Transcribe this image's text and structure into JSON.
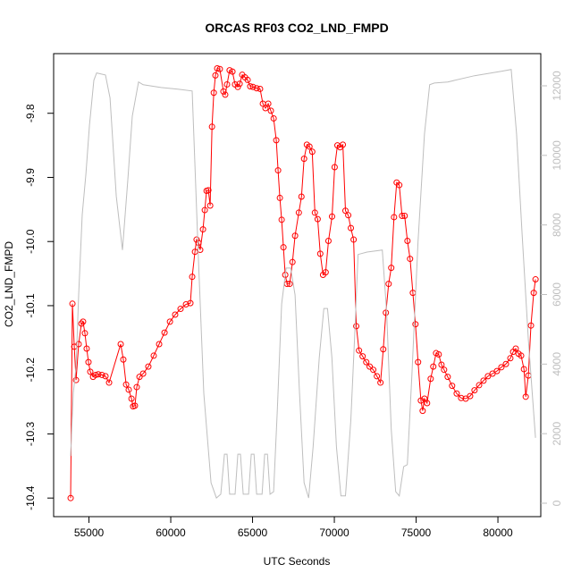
{
  "chart_data": {
    "type": "line",
    "title": "ORCAS RF03 CO2_LND_FMPD",
    "xlabel": "UTC Seconds",
    "ylabel": "CO2_LND_FMPD",
    "xlim": [
      52840,
      82620
    ],
    "xticks": [
      55000,
      60000,
      65000,
      70000,
      75000,
      80000
    ],
    "ylim": [
      -10.429,
      -9.707
    ],
    "yticks": [
      -9.8,
      -9.9,
      {
        "value": -10,
        "label": "-10.0"
      },
      -10.1,
      -10.2,
      -10.3,
      -10.4
    ],
    "y2lim": [
      -386,
      12925
    ],
    "y2ticks": [
      0,
      2000,
      4000,
      6000,
      8000,
      10000,
      12000
    ],
    "series": [
      {
        "color": "#ff0000",
        "markers": true,
        "x": [
          53880,
          53990,
          54100,
          54210,
          54370,
          54540,
          54640,
          54750,
          54860,
          54970,
          55080,
          55250,
          55410,
          55570,
          55790,
          56010,
          56230,
          56940,
          57100,
          57270,
          57430,
          57600,
          57700,
          57810,
          57920,
          58090,
          58310,
          58630,
          58960,
          59290,
          59620,
          59950,
          60270,
          60600,
          60930,
          61200,
          61310,
          61480,
          61580,
          61690,
          61800,
          61970,
          62080,
          62190,
          62300,
          62410,
          62520,
          62630,
          62730,
          62840,
          63000,
          63220,
          63330,
          63440,
          63600,
          63770,
          63930,
          64100,
          64210,
          64370,
          64540,
          64700,
          64860,
          65030,
          65250,
          65460,
          65630,
          65790,
          65960,
          66120,
          66290,
          66450,
          66560,
          66670,
          66780,
          66890,
          67000,
          67110,
          67270,
          67440,
          67600,
          67830,
          67990,
          68150,
          68320,
          68480,
          68650,
          68810,
          68980,
          69140,
          69310,
          69470,
          69640,
          69860,
          70020,
          70190,
          70350,
          70520,
          70680,
          70850,
          71010,
          71180,
          71340,
          71510,
          71730,
          71950,
          72160,
          72380,
          72600,
          72820,
          72990,
          73150,
          73320,
          73480,
          73650,
          73810,
          73970,
          74140,
          74300,
          74470,
          74630,
          74800,
          74960,
          75120,
          75290,
          75400,
          75510,
          75670,
          75890,
          76050,
          76220,
          76380,
          76550,
          76710,
          76930,
          77200,
          77480,
          77750,
          78030,
          78300,
          78570,
          78850,
          79120,
          79390,
          79670,
          79940,
          80210,
          80490,
          80760,
          80930,
          81090,
          81260,
          81420,
          81590,
          81700,
          81860,
          82020,
          82190,
          82300
        ],
        "values": [
          -10.4,
          -10.097,
          -10.164,
          -10.216,
          -10.16,
          -10.128,
          -10.125,
          -10.143,
          -10.167,
          -10.188,
          -10.203,
          -10.211,
          -10.208,
          -10.207,
          -10.208,
          -10.21,
          -10.22,
          -10.16,
          -10.184,
          -10.223,
          -10.231,
          -10.245,
          -10.257,
          -10.256,
          -10.227,
          -10.211,
          -10.206,
          -10.195,
          -10.178,
          -10.16,
          -10.142,
          -10.125,
          -10.114,
          -10.105,
          -10.098,
          -10.096,
          -10.055,
          -10.016,
          -9.997,
          -10.002,
          -10.013,
          -9.981,
          -9.951,
          -9.921,
          -9.92,
          -9.944,
          -9.821,
          -9.768,
          -9.741,
          -9.73,
          -9.731,
          -9.766,
          -9.771,
          -9.755,
          -9.733,
          -9.735,
          -9.755,
          -9.759,
          -9.754,
          -9.74,
          -9.744,
          -9.748,
          -9.758,
          -9.759,
          -9.761,
          -9.762,
          -9.785,
          -9.792,
          -9.785,
          -9.796,
          -9.808,
          -9.842,
          -9.889,
          -9.932,
          -9.966,
          -10.009,
          -10.052,
          -10.066,
          -10.066,
          -10.032,
          -9.991,
          -9.955,
          -9.93,
          -9.871,
          -9.849,
          -9.852,
          -9.86,
          -9.955,
          -9.965,
          -10.019,
          -10.052,
          -10.048,
          -9.999,
          -9.961,
          -9.884,
          -9.85,
          -9.853,
          -9.849,
          -9.952,
          -9.959,
          -9.979,
          -9.997,
          -10.132,
          -10.17,
          -10.179,
          -10.188,
          -10.195,
          -10.2,
          -10.21,
          -10.22,
          -10.168,
          -10.111,
          -10.066,
          -10.041,
          -9.962,
          -9.908,
          -9.912,
          -9.96,
          -9.96,
          -9.999,
          -10.027,
          -10.08,
          -10.129,
          -10.188,
          -10.248,
          -10.264,
          -10.245,
          -10.252,
          -10.214,
          -10.195,
          -10.174,
          -10.176,
          -10.192,
          -10.2,
          -10.211,
          -10.225,
          -10.237,
          -10.244,
          -10.245,
          -10.241,
          -10.232,
          -10.224,
          -10.217,
          -10.21,
          -10.206,
          -10.202,
          -10.196,
          -10.191,
          -10.182,
          -10.172,
          -10.167,
          -10.175,
          -10.178,
          -10.199,
          -10.242,
          -10.209,
          -10.131,
          -10.08,
          -10.059
        ]
      },
      {
        "color": "#bebebe",
        "axis": "y2",
        "x": [
          53880,
          54040,
          54210,
          54370,
          54590,
          54810,
          55030,
          55300,
          55470,
          56010,
          56290,
          56670,
          57050,
          57380,
          57650,
          58030,
          58310,
          59400,
          60490,
          61310,
          61690,
          62020,
          62460,
          62790,
          63060,
          63280,
          63440,
          63600,
          63930,
          64100,
          64260,
          64430,
          64760,
          64920,
          65090,
          65250,
          65580,
          65740,
          65910,
          66070,
          66290,
          66510,
          66780,
          67050,
          67330,
          67600,
          67870,
          68150,
          68430,
          68700,
          69080,
          69360,
          69580,
          69850,
          70130,
          70400,
          70680,
          71010,
          71230,
          71450,
          72000,
          72930,
          73200,
          73480,
          73750,
          73970,
          74240,
          74460,
          74740,
          75120,
          75510,
          75830,
          76110,
          76930,
          78570,
          80210,
          80810,
          81140,
          81470,
          81860,
          82300
        ],
        "values": [
          1360,
          3160,
          3930,
          5990,
          8300,
          9460,
          10870,
          12160,
          12370,
          12310,
          11650,
          8820,
          7280,
          9330,
          11130,
          12110,
          12030,
          11950,
          11900,
          11850,
          7020,
          3160,
          590,
          150,
          260,
          1410,
          1410,
          260,
          260,
          1410,
          1410,
          260,
          260,
          1410,
          1410,
          260,
          260,
          1410,
          1410,
          260,
          330,
          2650,
          5730,
          6760,
          6760,
          5990,
          3160,
          590,
          150,
          1620,
          4190,
          5600,
          5600,
          4190,
          1620,
          210,
          210,
          2390,
          4700,
          7150,
          7220,
          7280,
          5480,
          2130,
          330,
          210,
          1050,
          1110,
          3680,
          7530,
          10620,
          12030,
          12080,
          12110,
          12290,
          12420,
          12470,
          10620,
          7790,
          4700,
          1880
        ]
      }
    ]
  }
}
